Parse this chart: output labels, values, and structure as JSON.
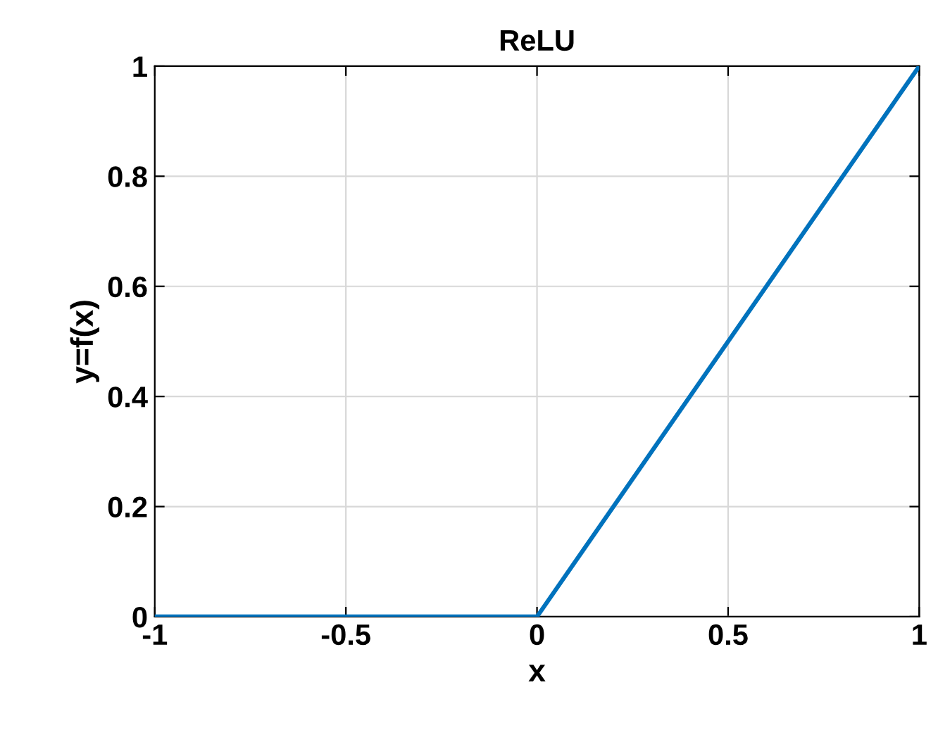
{
  "chart_data": {
    "type": "line",
    "title": "ReLU",
    "xlabel": "x",
    "ylabel": "y=f(x)",
    "series": [
      {
        "color": "#0072bd",
        "x": [
          -1,
          0,
          1
        ],
        "values": [
          0,
          0,
          1
        ]
      }
    ],
    "xlim": [
      -1,
      1
    ],
    "ylim": [
      0,
      1
    ],
    "xticks": [
      -1,
      -0.5,
      0,
      0.5,
      1
    ],
    "yticks": [
      0,
      0.2,
      0.4,
      0.6,
      0.8,
      1
    ],
    "grid": true,
    "line_style": "solid"
  }
}
